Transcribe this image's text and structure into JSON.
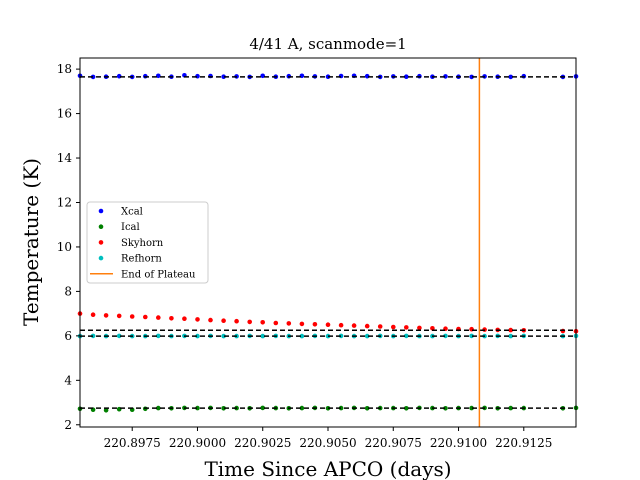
{
  "chart_data": {
    "type": "scatter",
    "title": "4/41 A, scanmode=1",
    "xlabel": "Time Since APCO (days)",
    "ylabel": "Temperature (K)",
    "xlim": [
      220.8955,
      220.9145
    ],
    "ylim": [
      1.9,
      18.5
    ],
    "xticks": [
      220.8975,
      220.9,
      220.9025,
      220.905,
      220.9075,
      220.91,
      220.9125
    ],
    "xtick_labels": [
      "220.8975",
      "220.9000",
      "220.9025",
      "220.9050",
      "220.9075",
      "220.9100",
      "220.9125"
    ],
    "yticks": [
      2,
      4,
      6,
      8,
      10,
      12,
      14,
      16,
      18
    ],
    "ytick_labels": [
      "2",
      "4",
      "6",
      "8",
      "10",
      "12",
      "14",
      "16",
      "18"
    ],
    "grid": false,
    "legend_position": "center-left",
    "x": [
      220.8955,
      220.896,
      220.8965,
      220.897,
      220.8975,
      220.898,
      220.8985,
      220.899,
      220.8995,
      220.9,
      220.9005,
      220.901,
      220.9015,
      220.902,
      220.9025,
      220.903,
      220.9035,
      220.904,
      220.9045,
      220.905,
      220.9055,
      220.906,
      220.9065,
      220.907,
      220.9075,
      220.908,
      220.9085,
      220.909,
      220.9095,
      220.91,
      220.9105,
      220.911,
      220.9115,
      220.912,
      220.9125,
      220.914,
      220.9145
    ],
    "series": [
      {
        "name": "Xcal",
        "color": "#0000ff",
        "values": [
          17.7,
          17.65,
          17.66,
          17.68,
          17.65,
          17.68,
          17.7,
          17.66,
          17.72,
          17.68,
          17.69,
          17.66,
          17.67,
          17.65,
          17.7,
          17.66,
          17.68,
          17.7,
          17.67,
          17.66,
          17.69,
          17.7,
          17.68,
          17.65,
          17.67,
          17.66,
          17.68,
          17.66,
          17.67,
          17.66,
          17.65,
          17.67,
          17.66,
          17.65,
          17.68,
          17.65,
          17.67
        ]
      },
      {
        "name": "Ical",
        "color": "#008000",
        "values": [
          2.72,
          2.68,
          2.65,
          2.7,
          2.68,
          2.72,
          2.75,
          2.74,
          2.76,
          2.75,
          2.76,
          2.74,
          2.75,
          2.74,
          2.76,
          2.75,
          2.74,
          2.75,
          2.76,
          2.74,
          2.75,
          2.76,
          2.74,
          2.75,
          2.75,
          2.74,
          2.76,
          2.75,
          2.74,
          2.75,
          2.75,
          2.76,
          2.74,
          2.75,
          2.75,
          2.74,
          2.76
        ]
      },
      {
        "name": "Skyhorn",
        "color": "#ff0000",
        "values": [
          7.0,
          6.95,
          6.92,
          6.9,
          6.87,
          6.85,
          6.82,
          6.79,
          6.77,
          6.74,
          6.71,
          6.68,
          6.66,
          6.63,
          6.61,
          6.58,
          6.56,
          6.54,
          6.52,
          6.5,
          6.48,
          6.46,
          6.44,
          6.42,
          6.4,
          6.38,
          6.36,
          6.34,
          6.32,
          6.31,
          6.3,
          6.28,
          6.27,
          6.26,
          6.25,
          6.22,
          6.21
        ]
      },
      {
        "name": "Refhorn",
        "color": "#00bfbf",
        "values": [
          5.99,
          6.0,
          5.99,
          6.0,
          5.99,
          5.99,
          6.0,
          5.99,
          6.0,
          5.99,
          6.0,
          5.99,
          5.99,
          6.0,
          5.99,
          6.0,
          5.99,
          5.99,
          6.0,
          5.99,
          6.0,
          5.99,
          5.99,
          6.0,
          5.99,
          6.0,
          5.99,
          5.99,
          6.0,
          5.99,
          6.0,
          5.99,
          6.0,
          5.99,
          6.0,
          5.99,
          6.0
        ]
      }
    ],
    "reference_lines": [
      17.65,
      6.25,
      5.99,
      2.75
    ],
    "reference_line_color": "#000000",
    "vertical_line": {
      "name": "End of Plateau",
      "x": 220.9108,
      "color": "#ff7f0e"
    }
  }
}
